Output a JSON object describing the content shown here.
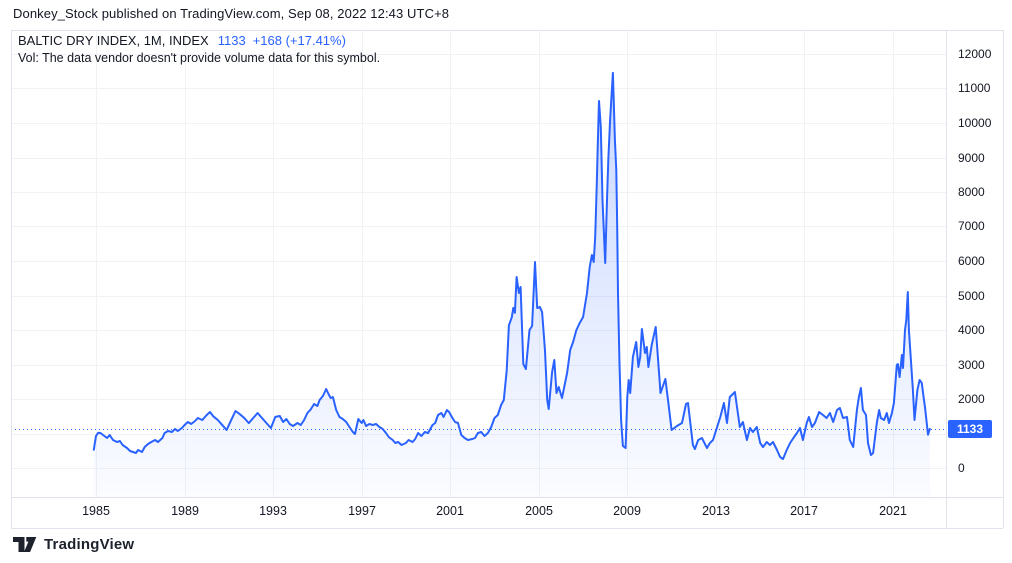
{
  "attribution": {
    "text": "Donkey_Stock published on TradingView.com, Sep 08, 2022 12:43 UTC+8"
  },
  "legend": {
    "symbol": "BALTIC DRY INDEX, 1M, INDEX",
    "last_price": "1133",
    "change": "+168 (+17.41%)",
    "vol_note": "Vol: The data vendor doesn't provide volume data for this symbol."
  },
  "price_label": "1133",
  "footer": {
    "brand": "TradingView"
  },
  "colors": {
    "accent": "#2962ff",
    "text": "#131722",
    "grid": "#f0f2f6",
    "border": "#e0e3eb",
    "price_label_bg": "#2962ff",
    "price_label_text": "#ffffff"
  },
  "chart_data": {
    "type": "area",
    "title": "BALTIC DRY INDEX, 1M, INDEX",
    "xlabel": "",
    "ylabel": "",
    "x_ticks": [
      1985,
      1989,
      1993,
      1997,
      2001,
      2005,
      2009,
      2013,
      2017,
      2021
    ],
    "y_ticks": [
      0,
      2000,
      3000,
      4000,
      5000,
      6000,
      7000,
      8000,
      9000,
      10000,
      11000,
      12000
    ],
    "y_grid": [
      0,
      1000,
      2000,
      3000,
      4000,
      5000,
      6000,
      7000,
      8000,
      9000,
      10000,
      11000,
      12000
    ],
    "xlim": [
      1981.2,
      2023.4
    ],
    "ylim": [
      -840,
      12700
    ],
    "grid": true,
    "legend_position": "none",
    "last_price": 1133,
    "series": [
      {
        "name": "Baltic Dry Index (1M)",
        "points": [
          [
            1984.9,
            530
          ],
          [
            1985.0,
            930
          ],
          [
            1985.1,
            1020
          ],
          [
            1985.2,
            1015
          ],
          [
            1985.32,
            957
          ],
          [
            1985.5,
            870
          ],
          [
            1985.62,
            957
          ],
          [
            1985.77,
            812
          ],
          [
            1985.95,
            754
          ],
          [
            1986.08,
            783
          ],
          [
            1986.2,
            667
          ],
          [
            1986.4,
            580
          ],
          [
            1986.54,
            493
          ],
          [
            1986.67,
            464
          ],
          [
            1986.8,
            435
          ],
          [
            1986.9,
            522
          ],
          [
            1987.08,
            464
          ],
          [
            1987.2,
            609
          ],
          [
            1987.35,
            696
          ],
          [
            1987.5,
            754
          ],
          [
            1987.67,
            812
          ],
          [
            1987.8,
            754
          ],
          [
            1988.0,
            870
          ],
          [
            1988.1,
            1015
          ],
          [
            1988.25,
            1073
          ],
          [
            1988.43,
            1044
          ],
          [
            1988.57,
            1131
          ],
          [
            1988.7,
            1073
          ],
          [
            1988.88,
            1160
          ],
          [
            1989.0,
            1246
          ],
          [
            1989.15,
            1333
          ],
          [
            1989.3,
            1275
          ],
          [
            1989.47,
            1362
          ],
          [
            1989.6,
            1449
          ],
          [
            1989.8,
            1391
          ],
          [
            1990.0,
            1536
          ],
          [
            1990.15,
            1623
          ],
          [
            1990.3,
            1500
          ],
          [
            1990.5,
            1391
          ],
          [
            1990.7,
            1250
          ],
          [
            1990.9,
            1101
          ],
          [
            1991.1,
            1380
          ],
          [
            1991.3,
            1652
          ],
          [
            1991.5,
            1560
          ],
          [
            1991.7,
            1450
          ],
          [
            1991.9,
            1300
          ],
          [
            1992.1,
            1449
          ],
          [
            1992.3,
            1594
          ],
          [
            1992.5,
            1449
          ],
          [
            1992.7,
            1300
          ],
          [
            1992.9,
            1160
          ],
          [
            1993.1,
            1480
          ],
          [
            1993.3,
            1507
          ],
          [
            1993.45,
            1333
          ],
          [
            1993.6,
            1420
          ],
          [
            1993.75,
            1275
          ],
          [
            1993.9,
            1217
          ],
          [
            1994.1,
            1304
          ],
          [
            1994.25,
            1246
          ],
          [
            1994.4,
            1391
          ],
          [
            1994.55,
            1594
          ],
          [
            1994.7,
            1700
          ],
          [
            1994.85,
            1855
          ],
          [
            1995.0,
            1797
          ],
          [
            1995.1,
            1971
          ],
          [
            1995.25,
            2087
          ],
          [
            1995.4,
            2290
          ],
          [
            1995.5,
            2145
          ],
          [
            1995.6,
            2029
          ],
          [
            1995.7,
            2058
          ],
          [
            1995.85,
            1681
          ],
          [
            1996.0,
            1478
          ],
          [
            1996.15,
            1420
          ],
          [
            1996.3,
            1333
          ],
          [
            1996.45,
            1188
          ],
          [
            1996.6,
            1043
          ],
          [
            1996.7,
            985
          ],
          [
            1996.85,
            1420
          ],
          [
            1997.0,
            1304
          ],
          [
            1997.08,
            1391
          ],
          [
            1997.2,
            1217
          ],
          [
            1997.35,
            1275
          ],
          [
            1997.5,
            1246
          ],
          [
            1997.65,
            1275
          ],
          [
            1997.8,
            1188
          ],
          [
            1997.95,
            1130
          ],
          [
            1998.1,
            1014
          ],
          [
            1998.22,
            898
          ],
          [
            1998.4,
            812
          ],
          [
            1998.52,
            725
          ],
          [
            1998.65,
            754
          ],
          [
            1998.8,
            667
          ],
          [
            1999.0,
            725
          ],
          [
            1999.12,
            812
          ],
          [
            1999.3,
            754
          ],
          [
            1999.42,
            841
          ],
          [
            1999.55,
            1015
          ],
          [
            1999.7,
            928
          ],
          [
            1999.85,
            1044
          ],
          [
            2000.0,
            1015
          ],
          [
            2000.2,
            1246
          ],
          [
            2000.32,
            1304
          ],
          [
            2000.45,
            1536
          ],
          [
            2000.6,
            1594
          ],
          [
            2000.7,
            1478
          ],
          [
            2000.85,
            1681
          ],
          [
            2000.95,
            1623
          ],
          [
            2001.1,
            1449
          ],
          [
            2001.22,
            1333
          ],
          [
            2001.35,
            1304
          ],
          [
            2001.5,
            957
          ],
          [
            2001.65,
            870
          ],
          [
            2001.8,
            812
          ],
          [
            2002.0,
            841
          ],
          [
            2002.12,
            870
          ],
          [
            2002.25,
            1015
          ],
          [
            2002.4,
            1044
          ],
          [
            2002.55,
            928
          ],
          [
            2002.7,
            1015
          ],
          [
            2002.85,
            1188
          ],
          [
            2003.0,
            1449
          ],
          [
            2003.15,
            1536
          ],
          [
            2003.3,
            1826
          ],
          [
            2003.42,
            1971
          ],
          [
            2003.55,
            2824
          ],
          [
            2003.65,
            4135
          ],
          [
            2003.78,
            4368
          ],
          [
            2003.85,
            4640
          ],
          [
            2003.92,
            4500
          ],
          [
            2004.0,
            5537
          ],
          [
            2004.1,
            5073
          ],
          [
            2004.18,
            5247
          ],
          [
            2004.3,
            3015
          ],
          [
            2004.42,
            2870
          ],
          [
            2004.58,
            4001
          ],
          [
            2004.7,
            4117
          ],
          [
            2004.83,
            5972
          ],
          [
            2004.93,
            4638
          ],
          [
            2005.05,
            4667
          ],
          [
            2005.15,
            4522
          ],
          [
            2005.28,
            3400
          ],
          [
            2005.38,
            1980
          ],
          [
            2005.45,
            1710
          ],
          [
            2005.6,
            2783
          ],
          [
            2005.7,
            3131
          ],
          [
            2005.8,
            2174
          ],
          [
            2005.9,
            2348
          ],
          [
            2006.05,
            2029
          ],
          [
            2006.28,
            2754
          ],
          [
            2006.42,
            3421
          ],
          [
            2006.55,
            3653
          ],
          [
            2006.7,
            4001
          ],
          [
            2006.85,
            4204
          ],
          [
            2007.0,
            4378
          ],
          [
            2007.18,
            5073
          ],
          [
            2007.3,
            5827
          ],
          [
            2007.4,
            6175
          ],
          [
            2007.48,
            5972
          ],
          [
            2007.55,
            6697
          ],
          [
            2007.62,
            8262
          ],
          [
            2007.67,
            9509
          ],
          [
            2007.72,
            10639
          ],
          [
            2007.8,
            9886
          ],
          [
            2007.88,
            7769
          ],
          [
            2008.0,
            5943
          ],
          [
            2008.08,
            7769
          ],
          [
            2008.14,
            8929
          ],
          [
            2008.22,
            10088
          ],
          [
            2008.35,
            11451
          ],
          [
            2008.44,
            9509
          ],
          [
            2008.5,
            8639
          ],
          [
            2008.54,
            6987
          ],
          [
            2008.58,
            5073
          ],
          [
            2008.64,
            3131
          ],
          [
            2008.72,
            1391
          ],
          [
            2008.8,
            638
          ],
          [
            2008.92,
            580
          ],
          [
            2009.0,
            2058
          ],
          [
            2009.06,
            2551
          ],
          [
            2009.13,
            2174
          ],
          [
            2009.25,
            3218
          ],
          [
            2009.4,
            3653
          ],
          [
            2009.5,
            2928
          ],
          [
            2009.58,
            3218
          ],
          [
            2009.66,
            4030
          ],
          [
            2009.8,
            3334
          ],
          [
            2009.88,
            3508
          ],
          [
            2009.95,
            2928
          ],
          [
            2010.1,
            3566
          ],
          [
            2010.28,
            4088
          ],
          [
            2010.5,
            2174
          ],
          [
            2010.62,
            2400
          ],
          [
            2010.72,
            2580
          ],
          [
            2010.85,
            1900
          ],
          [
            2011.0,
            1102
          ],
          [
            2011.24,
            1218
          ],
          [
            2011.47,
            1304
          ],
          [
            2011.65,
            1855
          ],
          [
            2011.74,
            1884
          ],
          [
            2011.96,
            667
          ],
          [
            2012.05,
            551
          ],
          [
            2012.2,
            812
          ],
          [
            2012.37,
            870
          ],
          [
            2012.6,
            580
          ],
          [
            2012.73,
            725
          ],
          [
            2012.87,
            812
          ],
          [
            2013.2,
            1478
          ],
          [
            2013.36,
            1884
          ],
          [
            2013.5,
            1304
          ],
          [
            2013.63,
            2058
          ],
          [
            2013.86,
            2203
          ],
          [
            2014.08,
            1188
          ],
          [
            2014.22,
            1333
          ],
          [
            2014.4,
            812
          ],
          [
            2014.54,
            1160
          ],
          [
            2014.67,
            1044
          ],
          [
            2014.85,
            1188
          ],
          [
            2015.0,
            725
          ],
          [
            2015.13,
            609
          ],
          [
            2015.3,
            754
          ],
          [
            2015.44,
            667
          ],
          [
            2015.58,
            754
          ],
          [
            2015.76,
            522
          ],
          [
            2015.9,
            320
          ],
          [
            2016.03,
            260
          ],
          [
            2016.2,
            522
          ],
          [
            2016.35,
            725
          ],
          [
            2016.5,
            870
          ],
          [
            2016.66,
            1015
          ],
          [
            2016.8,
            1160
          ],
          [
            2016.93,
            812
          ],
          [
            2017.1,
            1304
          ],
          [
            2017.2,
            1478
          ],
          [
            2017.34,
            1188
          ],
          [
            2017.47,
            1304
          ],
          [
            2017.66,
            1623
          ],
          [
            2017.84,
            1536
          ],
          [
            2018.0,
            1449
          ],
          [
            2018.15,
            1594
          ],
          [
            2018.3,
            1333
          ],
          [
            2018.47,
            1681
          ],
          [
            2018.6,
            1739
          ],
          [
            2018.74,
            1449
          ],
          [
            2018.92,
            1478
          ],
          [
            2019.05,
            812
          ],
          [
            2019.2,
            609
          ],
          [
            2019.37,
            1681
          ],
          [
            2019.46,
            2058
          ],
          [
            2019.55,
            2319
          ],
          [
            2019.64,
            1681
          ],
          [
            2019.78,
            1536
          ],
          [
            2019.87,
            725
          ],
          [
            2020.0,
            377
          ],
          [
            2020.1,
            435
          ],
          [
            2020.27,
            1304
          ],
          [
            2020.37,
            1681
          ],
          [
            2020.45,
            1449
          ],
          [
            2020.6,
            1391
          ],
          [
            2020.72,
            1594
          ],
          [
            2020.82,
            1304
          ],
          [
            2020.95,
            1594
          ],
          [
            2021.04,
            1884
          ],
          [
            2021.17,
            2986
          ],
          [
            2021.22,
            3015
          ],
          [
            2021.3,
            2638
          ],
          [
            2021.4,
            3276
          ],
          [
            2021.45,
            2899
          ],
          [
            2021.54,
            4001
          ],
          [
            2021.6,
            4291
          ],
          [
            2021.67,
            5102
          ],
          [
            2021.72,
            4001
          ],
          [
            2021.8,
            3218
          ],
          [
            2021.9,
            2261
          ],
          [
            2021.97,
            1391
          ],
          [
            2022.1,
            2261
          ],
          [
            2022.2,
            2551
          ],
          [
            2022.3,
            2464
          ],
          [
            2022.37,
            2116
          ],
          [
            2022.45,
            1739
          ],
          [
            2022.58,
            965
          ],
          [
            2022.66,
            1133
          ]
        ]
      }
    ]
  }
}
